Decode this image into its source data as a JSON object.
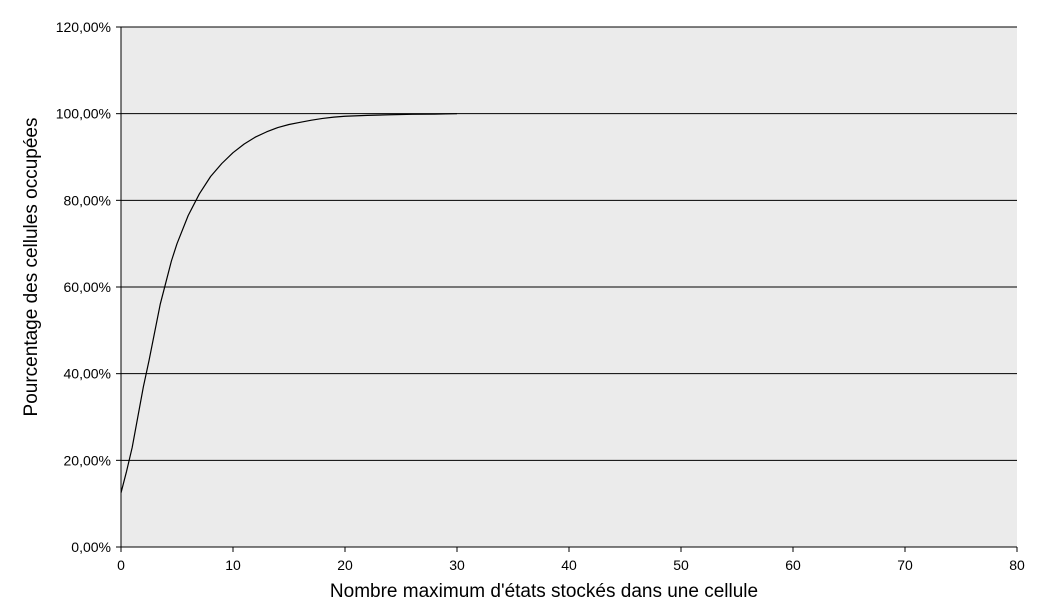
{
  "chart_data": {
    "type": "line",
    "xlabel": "Nombre maximum d'états stockés dans une cellule",
    "ylabel": "Pourcentage des cellules occupées",
    "xlim": [
      0,
      80
    ],
    "ylim": [
      0,
      120
    ],
    "x_ticks": [
      0,
      10,
      20,
      30,
      40,
      50,
      60,
      70,
      80
    ],
    "y_ticks": [
      0,
      20,
      40,
      60,
      80,
      100,
      120
    ],
    "x_tick_labels": [
      "0",
      "10",
      "20",
      "30",
      "40",
      "50",
      "60",
      "70",
      "80"
    ],
    "y_tick_labels": [
      "0,00%",
      "20,00%",
      "40,00%",
      "60,00%",
      "80,00%",
      "100,00%",
      "120,00%"
    ],
    "grid": "horizontal",
    "plot_background": "#ebebeb",
    "line_color": "#000000",
    "series": [
      {
        "x": [
          0,
          0.5,
          1,
          1.5,
          2,
          2.5,
          3,
          3.5,
          4,
          4.5,
          5,
          6,
          7,
          8,
          9,
          10,
          11,
          12,
          13,
          14,
          15,
          16,
          17,
          18,
          19,
          20,
          22,
          24,
          26,
          28,
          30
        ],
        "values": [
          12.5,
          17.5,
          23,
          30,
          37,
          43,
          49.5,
          56,
          61,
          66,
          70,
          76.5,
          81.5,
          85.5,
          88.5,
          91,
          93,
          94.6,
          95.8,
          96.8,
          97.5,
          98,
          98.5,
          98.9,
          99.2,
          99.4,
          99.6,
          99.75,
          99.85,
          99.9,
          100
        ]
      }
    ]
  }
}
